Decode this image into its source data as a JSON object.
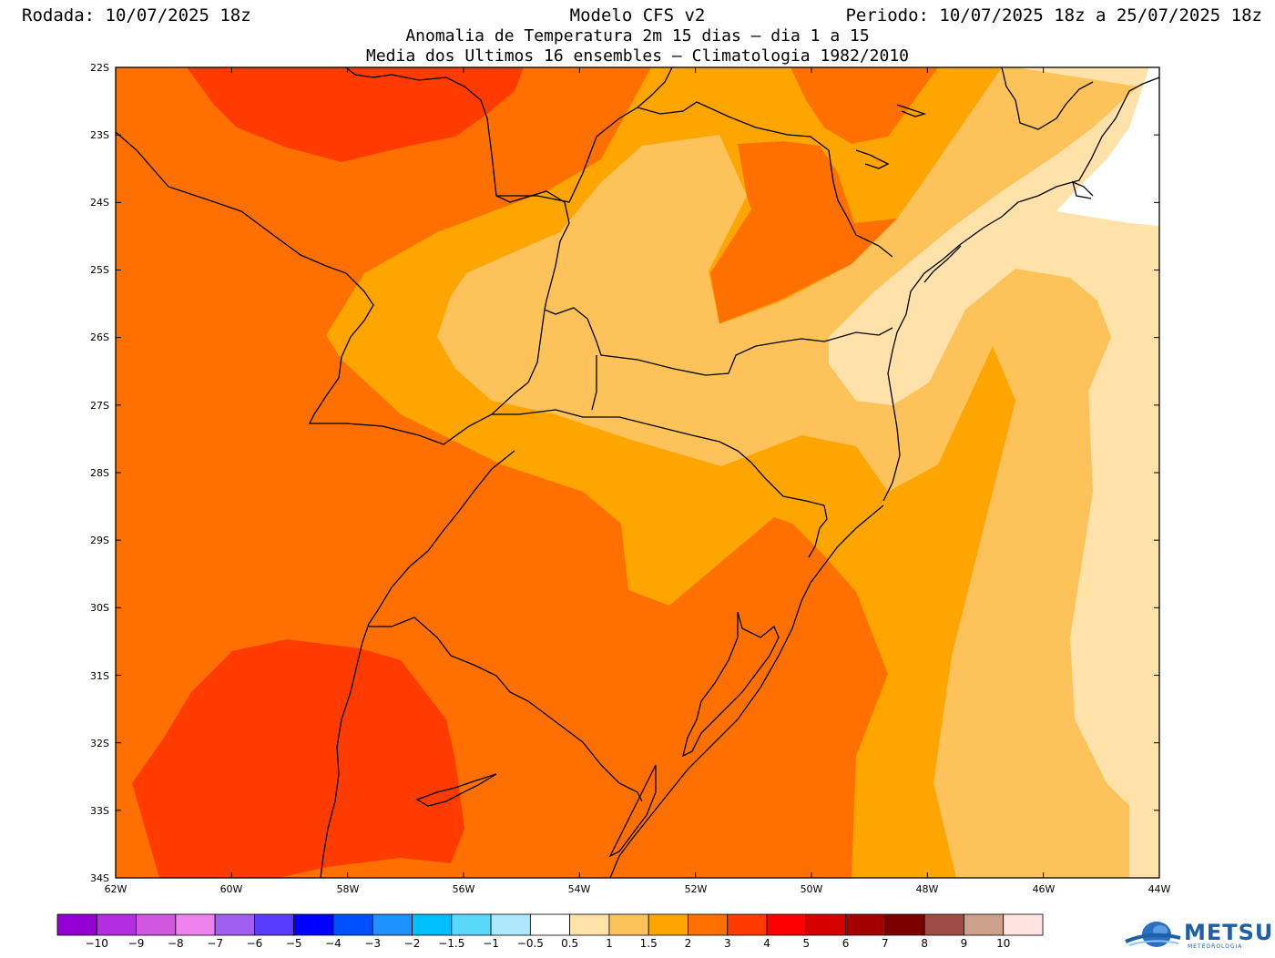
{
  "header": {
    "left": "Rodada: 10/07/2025 18z",
    "center": "Modelo CFS v2",
    "right": "Periodo: 10/07/2025 18z a 25/07/2025 18z",
    "line2": "Anomalia de Temperatura 2m 15 dias — dia 1 a 15",
    "line3": "Media dos Ultimos 16 ensembles — Climatologia 1982/2010"
  },
  "map": {
    "lat_labels": [
      "22S",
      "23S",
      "24S",
      "25S",
      "26S",
      "27S",
      "28S",
      "29S",
      "30S",
      "31S",
      "32S",
      "33S",
      "34S"
    ],
    "lon_labels": [
      "62W",
      "60W",
      "58W",
      "56W",
      "54W",
      "52W",
      "50W",
      "48W",
      "46W",
      "44W"
    ],
    "colors": {
      "c2_3": "#ff7000",
      "c3_4": "#ff3b00",
      "c1_5_2": "#ffa500",
      "c1_1_5": "#fdc35a",
      "c0_5_1": "#ffe2aa",
      "ocean_none": "#ffffff"
    }
  },
  "colorbar": {
    "labels": [
      "−10",
      "−9",
      "−8",
      "−7",
      "−6",
      "−5",
      "−4",
      "−3",
      "−2",
      "−1.5",
      "−1",
      "−0.5",
      "0.5",
      "1",
      "1.5",
      "2",
      "3",
      "4",
      "5",
      "6",
      "7",
      "8",
      "9",
      "10"
    ],
    "colors": [
      "#9400d3",
      "#b22ee0",
      "#d057e0",
      "#ee82ee",
      "#a15ff0",
      "#5a3cff",
      "#0000ff",
      "#0050ff",
      "#1e90ff",
      "#00bfff",
      "#5ad8fa",
      "#aee8fb",
      "#ffffff",
      "#ffe2aa",
      "#fdc35a",
      "#ffa500",
      "#ff7000",
      "#ff3b00",
      "#ff0000",
      "#d70000",
      "#a50000",
      "#7b0000",
      "#a04b46",
      "#cda08c",
      "#ffe4e1"
    ]
  },
  "logo": {
    "name": "METSUL",
    "tagline": "METEOROLOGIA"
  }
}
